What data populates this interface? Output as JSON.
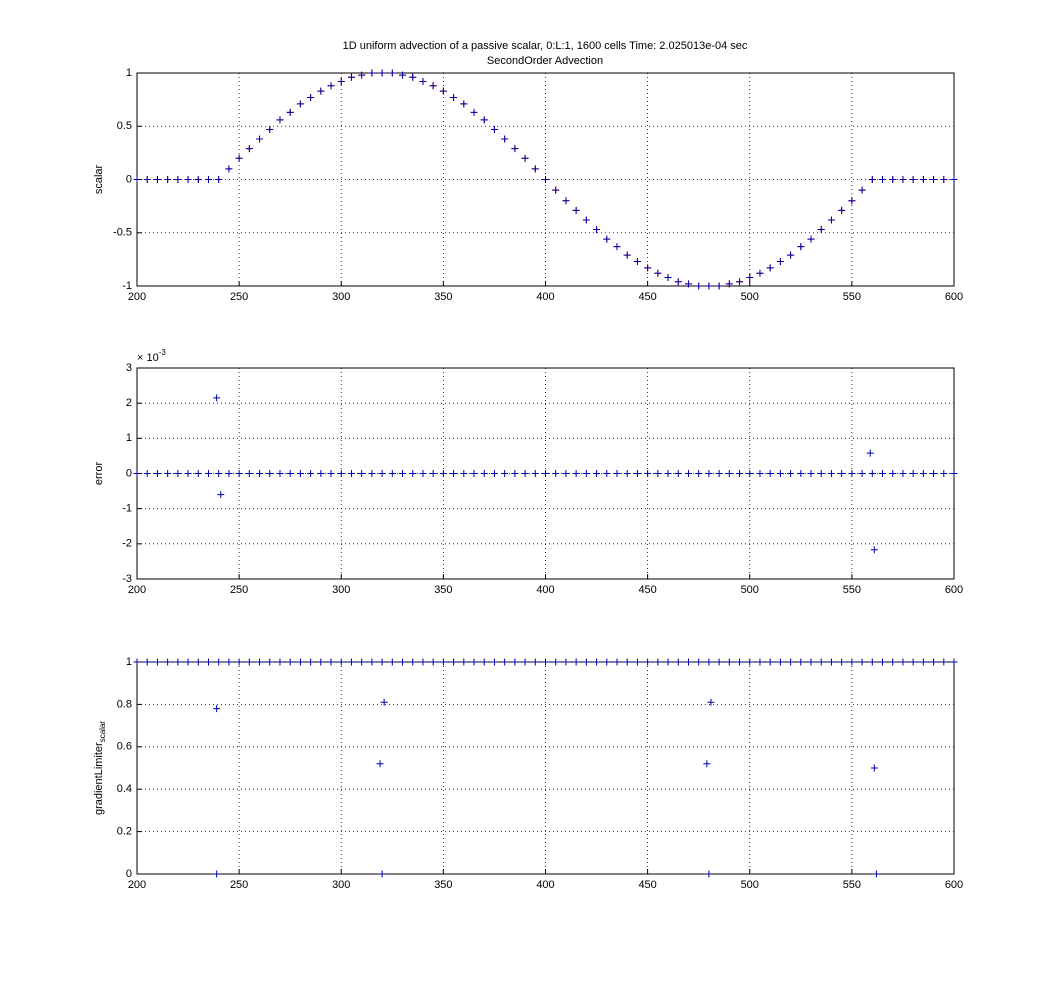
{
  "chart_data": [
    {
      "type": "scatter",
      "title": "1D uniform advection of a passive scalar, 0:L:1, 1600 cells Time: 2.025013e-04 sec",
      "subtitle": "SecondOrder Advection",
      "ylabel": "scalar",
      "grid": true,
      "x": [
        200,
        205,
        210,
        215,
        220,
        225,
        230,
        235,
        240,
        245,
        250,
        255,
        260,
        265,
        270,
        275,
        280,
        285,
        290,
        295,
        300,
        305,
        310,
        315,
        320,
        325,
        330,
        335,
        340,
        345,
        350,
        355,
        360,
        365,
        370,
        375,
        380,
        385,
        390,
        395,
        400,
        405,
        410,
        415,
        420,
        425,
        430,
        435,
        440,
        445,
        450,
        455,
        460,
        465,
        470,
        475,
        480,
        485,
        490,
        495,
        500,
        505,
        510,
        515,
        520,
        525,
        530,
        535,
        540,
        545,
        550,
        555,
        560,
        565,
        570,
        575,
        580,
        585,
        590,
        595,
        600
      ],
      "series": [
        {
          "color": "#ff0000",
          "values": [
            0,
            0,
            0,
            0,
            0,
            0,
            0,
            0,
            0,
            0.1,
            0.2,
            0.29,
            0.38,
            0.47,
            0.56,
            0.63,
            0.71,
            0.77,
            0.83,
            0.88,
            0.92,
            0.96,
            0.98,
            1,
            1,
            1,
            0.98,
            0.96,
            0.92,
            0.88,
            0.83,
            0.77,
            0.71,
            0.63,
            0.56,
            0.47,
            0.38,
            0.29,
            0.2,
            0.1,
            0,
            -0.1,
            -0.2,
            -0.29,
            -0.38,
            -0.47,
            -0.56,
            -0.63,
            -0.71,
            -0.77,
            -0.83,
            -0.88,
            -0.92,
            -0.96,
            -0.98,
            -1,
            -1,
            -1,
            -0.98,
            -0.96,
            -0.92,
            -0.88,
            -0.83,
            -0.77,
            -0.71,
            -0.63,
            -0.56,
            -0.47,
            -0.38,
            -0.29,
            -0.2,
            -0.1,
            0,
            0,
            0,
            0,
            0,
            0,
            0,
            0,
            0
          ]
        },
        {
          "color": "#0000aa",
          "values": [
            0,
            0,
            0,
            0,
            0,
            0,
            0,
            0,
            0,
            0.1,
            0.2,
            0.29,
            0.38,
            0.47,
            0.56,
            0.63,
            0.71,
            0.77,
            0.83,
            0.88,
            0.92,
            0.96,
            0.98,
            1,
            1,
            1,
            0.98,
            0.96,
            0.92,
            0.88,
            0.83,
            0.77,
            0.71,
            0.63,
            0.56,
            0.47,
            0.38,
            0.29,
            0.2,
            0.1,
            0,
            -0.1,
            -0.2,
            -0.29,
            -0.38,
            -0.47,
            -0.56,
            -0.63,
            -0.71,
            -0.77,
            -0.83,
            -0.88,
            -0.92,
            -0.96,
            -0.98,
            -1,
            -1,
            -1,
            -0.98,
            -0.96,
            -0.92,
            -0.88,
            -0.83,
            -0.77,
            -0.71,
            -0.63,
            -0.56,
            -0.47,
            -0.38,
            -0.29,
            -0.2,
            -0.1,
            0,
            0,
            0,
            0,
            0,
            0,
            0,
            0,
            0
          ]
        }
      ],
      "xlim": [
        200,
        600
      ],
      "xticks": [
        200,
        250,
        300,
        350,
        400,
        450,
        500,
        550,
        600
      ],
      "ylim": [
        -1,
        1
      ],
      "yticks": [
        -1,
        -0.5,
        0,
        0.5,
        1
      ]
    },
    {
      "type": "scatter",
      "ylabel": "error",
      "y_exponent_base": "× 10",
      "y_exponent": "-3",
      "grid": true,
      "x": [
        200,
        205,
        210,
        215,
        220,
        225,
        230,
        235,
        240,
        245,
        250,
        255,
        260,
        265,
        270,
        275,
        280,
        285,
        290,
        295,
        300,
        305,
        310,
        315,
        320,
        325,
        330,
        335,
        340,
        345,
        350,
        355,
        360,
        365,
        370,
        375,
        380,
        385,
        390,
        395,
        400,
        405,
        410,
        415,
        420,
        425,
        430,
        435,
        440,
        445,
        450,
        455,
        460,
        465,
        470,
        475,
        480,
        485,
        490,
        495,
        500,
        505,
        510,
        515,
        520,
        525,
        530,
        535,
        540,
        545,
        550,
        555,
        560,
        565,
        570,
        575,
        580,
        585,
        590,
        595,
        600
      ],
      "series": [
        {
          "color": "#0000aa",
          "values": [
            0,
            0,
            0,
            0,
            0,
            0,
            0,
            0,
            0,
            0,
            0,
            0,
            0,
            0,
            0,
            0,
            0,
            0,
            0,
            0,
            0,
            0,
            0,
            0,
            0,
            0,
            0,
            0,
            0,
            0,
            0,
            0,
            0,
            0,
            0,
            0,
            0,
            0,
            0,
            0,
            0,
            0,
            0,
            0,
            0,
            0,
            0,
            0,
            0,
            0,
            0,
            0,
            0,
            0,
            0,
            0,
            0,
            0,
            0,
            0,
            0,
            0,
            0,
            0,
            0,
            0,
            0,
            0,
            0,
            0,
            0,
            0,
            0,
            0,
            0,
            0,
            0,
            0,
            0,
            0,
            0
          ]
        },
        {
          "color": "#0000aa",
          "x": [
            239,
            241,
            559,
            561
          ],
          "values": [
            0.00215,
            -0.0006,
            0.00058,
            -0.00217
          ]
        }
      ],
      "xlim": [
        200,
        600
      ],
      "xticks": [
        200,
        250,
        300,
        350,
        400,
        450,
        500,
        550,
        600
      ],
      "ylim": [
        -0.003,
        0.003
      ],
      "yticks": [
        {
          "value": -0.003,
          "label": "-3"
        },
        {
          "value": -0.002,
          "label": "-2"
        },
        {
          "value": -0.001,
          "label": "-1"
        },
        0,
        {
          "value": 0.001,
          "label": "1"
        },
        {
          "value": 0.002,
          "label": "2"
        },
        {
          "value": 0.003,
          "label": "3"
        }
      ]
    },
    {
      "type": "scatter",
      "ylabel": "gradientLimiter",
      "ylabel_sub": "scalar",
      "grid": true,
      "x": [
        200,
        205,
        210,
        215,
        220,
        225,
        230,
        235,
        240,
        245,
        250,
        255,
        260,
        265,
        270,
        275,
        280,
        285,
        290,
        295,
        300,
        305,
        310,
        315,
        320,
        325,
        330,
        335,
        340,
        345,
        350,
        355,
        360,
        365,
        370,
        375,
        380,
        385,
        390,
        395,
        400,
        405,
        410,
        415,
        420,
        425,
        430,
        435,
        440,
        445,
        450,
        455,
        460,
        465,
        470,
        475,
        480,
        485,
        490,
        495,
        500,
        505,
        510,
        515,
        520,
        525,
        530,
        535,
        540,
        545,
        550,
        555,
        560,
        565,
        570,
        575,
        580,
        585,
        590,
        595,
        600
      ],
      "series": [
        {
          "color": "#0000aa",
          "values": [
            1,
            1,
            1,
            1,
            1,
            1,
            1,
            1,
            1,
            1,
            1,
            1,
            1,
            1,
            1,
            1,
            1,
            1,
            1,
            1,
            1,
            1,
            1,
            1,
            1,
            1,
            1,
            1,
            1,
            1,
            1,
            1,
            1,
            1,
            1,
            1,
            1,
            1,
            1,
            1,
            1,
            1,
            1,
            1,
            1,
            1,
            1,
            1,
            1,
            1,
            1,
            1,
            1,
            1,
            1,
            1,
            1,
            1,
            1,
            1,
            1,
            1,
            1,
            1,
            1,
            1,
            1,
            1,
            1,
            1,
            1,
            1,
            1,
            1,
            1,
            1,
            1,
            1,
            1,
            1,
            1
          ]
        },
        {
          "color": "#0000aa",
          "x": [
            239,
            239,
            319,
            320,
            321,
            479,
            480,
            481,
            561,
            562
          ],
          "values": [
            0.78,
            0,
            0.52,
            0,
            0.81,
            0.52,
            0,
            0.81,
            0.5,
            0
          ]
        }
      ],
      "xlim": [
        200,
        600
      ],
      "xticks": [
        200,
        250,
        300,
        350,
        400,
        450,
        500,
        550,
        600
      ],
      "ylim": [
        0,
        1
      ],
      "yticks": [
        0,
        0.2,
        0.4,
        0.6,
        0.8,
        1
      ]
    }
  ]
}
